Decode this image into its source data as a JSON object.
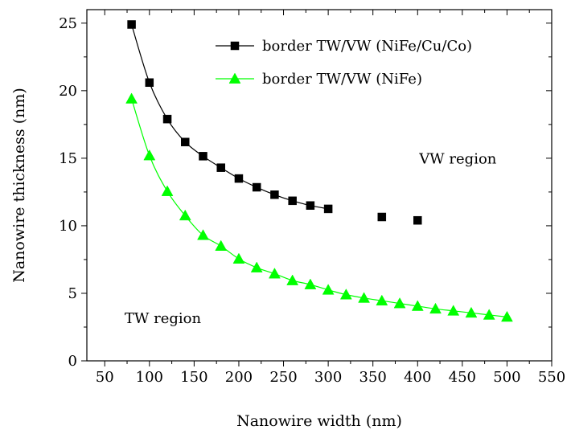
{
  "chart_data": {
    "type": "scatter",
    "xlabel": "Nanowire width (nm)",
    "ylabel": "Nanowire thickness (nm)",
    "xlim": [
      30,
      550
    ],
    "ylim": [
      0,
      26
    ],
    "xticks": [
      50,
      100,
      150,
      200,
      250,
      300,
      350,
      400,
      450,
      500,
      550
    ],
    "yticks": [
      0,
      5,
      10,
      15,
      20,
      25
    ],
    "grid": false,
    "legend_position": "top-right",
    "series": [
      {
        "name": "border TW/VW (NiFe/Cu/Co)",
        "color": "#000000",
        "marker": "square",
        "x": [
          80,
          100,
          120,
          140,
          160,
          180,
          200,
          220,
          240,
          260,
          280,
          300,
          360,
          400
        ],
        "y": [
          24.9,
          20.6,
          17.9,
          16.2,
          15.15,
          14.3,
          13.5,
          12.85,
          12.3,
          11.85,
          11.5,
          11.25,
          10.65,
          10.4
        ],
        "line_points": 12
      },
      {
        "name": "border TW/VW (NiFe)",
        "color": "#00ff00",
        "marker": "triangle",
        "x": [
          80,
          100,
          120,
          140,
          160,
          180,
          200,
          220,
          240,
          260,
          280,
          300,
          320,
          340,
          360,
          380,
          400,
          420,
          440,
          460,
          480,
          500
        ],
        "y": [
          19.4,
          15.2,
          12.55,
          10.75,
          9.3,
          8.5,
          7.55,
          6.9,
          6.45,
          5.95,
          5.65,
          5.25,
          4.9,
          4.65,
          4.45,
          4.25,
          4.05,
          3.85,
          3.7,
          3.55,
          3.4,
          3.25
        ],
        "line_points": 22
      }
    ],
    "annotations": [
      {
        "text": "VW region",
        "x": 445,
        "y": 14.6
      },
      {
        "text": "TW region",
        "x": 115,
        "y": 2.8
      }
    ]
  }
}
